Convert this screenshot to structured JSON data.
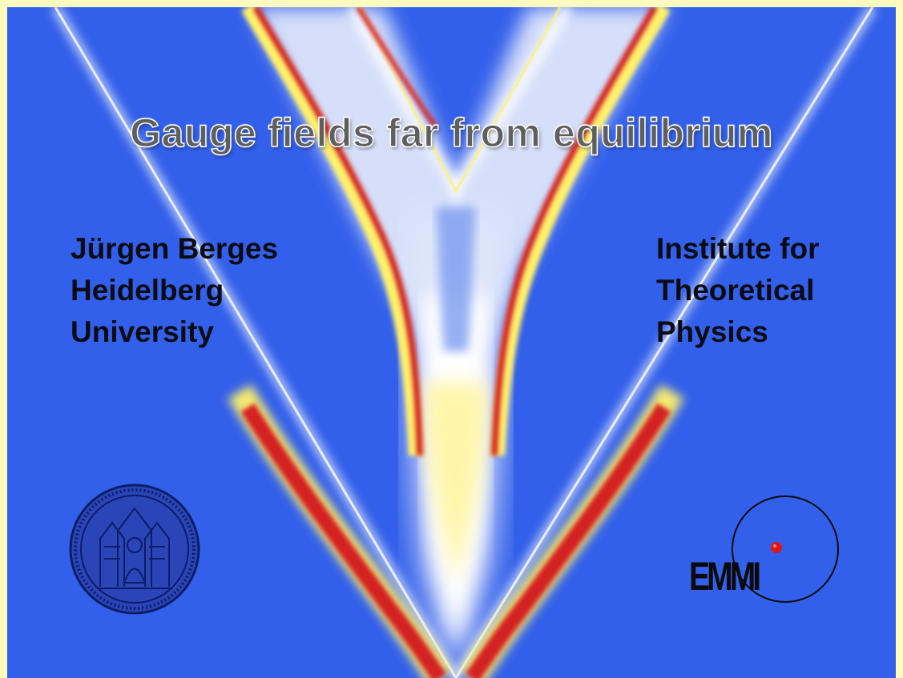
{
  "slide": {
    "title": "Gauge fields far from equilibrium",
    "author": {
      "lines": [
        "Jürgen Berges",
        "Heidelberg",
        "University"
      ]
    },
    "institute": {
      "lines": [
        "Institute for",
        "Theoretical",
        "Physics"
      ]
    },
    "logos": {
      "seal": "heidelberg-university-seal",
      "emmi": "EMMI"
    },
    "colors": {
      "frame": "#fdfbbf",
      "background": "#3360ea",
      "cone_red": "#d42020",
      "cone_yellow": "#fff26a",
      "cone_white": "#ffffff"
    }
  }
}
